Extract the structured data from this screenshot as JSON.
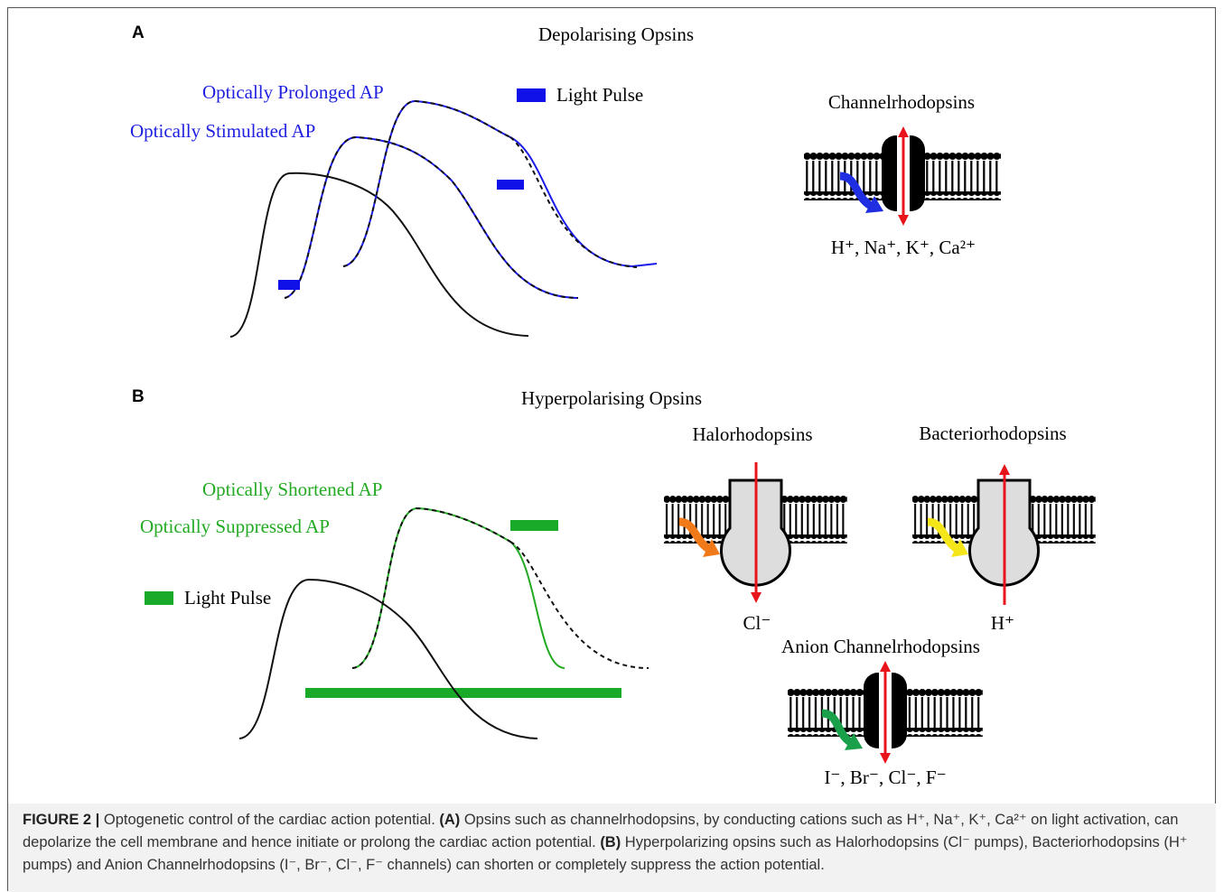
{
  "panel_a": {
    "letter": "A",
    "title": "Depolarising Opsins",
    "curve_labels": [
      "Optically Prolonged AP",
      "Optically Stimulated AP"
    ],
    "legend": "Light Pulse",
    "opsin": {
      "name": "Channelrhodopsins",
      "ions": "H⁺, Na⁺, K⁺, Ca²⁺"
    }
  },
  "panel_b": {
    "letter": "B",
    "title": "Hyperpolarising Opsins",
    "curve_labels": [
      "Optically Shortened AP",
      "Optically Suppressed AP"
    ],
    "legend": "Light Pulse",
    "opsins": [
      {
        "name": "Halorhodopsins",
        "ions": "Cl⁻"
      },
      {
        "name": "Bacteriorhodopsins",
        "ions": "H⁺"
      },
      {
        "name": "Anion Channelrhodopsins",
        "ions": "I⁻, Br⁻, Cl⁻, F⁻"
      }
    ]
  },
  "caption": {
    "label": "FIGURE 2 |",
    "parts": [
      " Optogenetic control of the cardiac action potential. ",
      "(A)",
      " Opsins such as channelrhodopsins, by conducting cations such as H⁺, Na⁺, K⁺, Ca²⁺ on light activation, can depolarize the cell membrane and hence initiate or prolong the cardiac action potential. ",
      "(B)",
      " Hyperpolarizing opsins such as Halorhodopsins (Cl⁻ pumps), Bacteriorhodopsins (H⁺ pumps) and Anion Channelrhodopsins (I⁻, Br⁻, Cl⁻, F⁻ channels) can shorten or completely suppress the action potential."
    ]
  }
}
